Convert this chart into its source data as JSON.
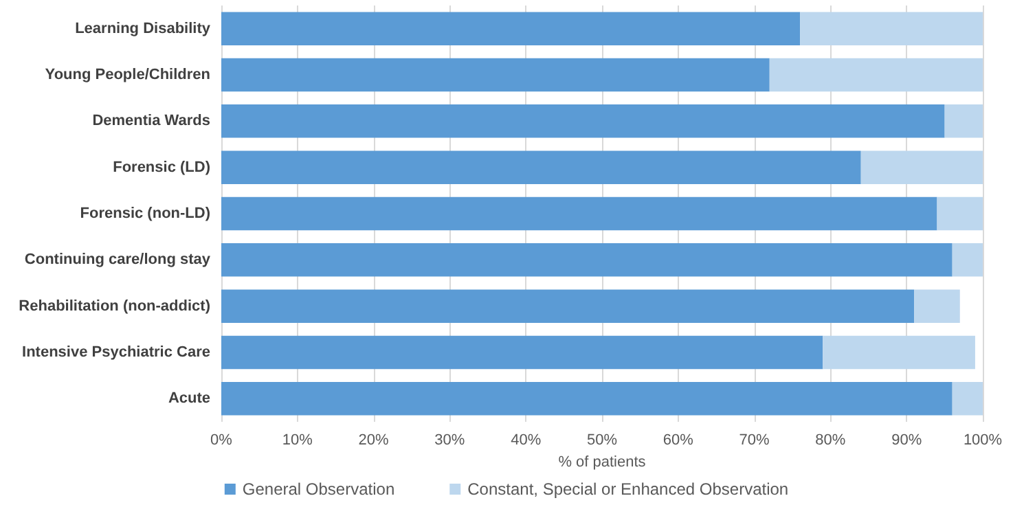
{
  "chart_data": {
    "type": "bar",
    "orientation": "horizontal",
    "stacked": true,
    "xlabel": "% of patients",
    "categories": [
      "Learning Disability",
      "Young People/Children",
      "Dementia Wards",
      "Forensic (LD)",
      "Forensic (non-LD)",
      "Continuing care/long stay",
      "Rehabilitation (non-addict)",
      "Intensive Psychiatric Care",
      "Acute"
    ],
    "series": [
      {
        "name": "General Observation",
        "color": "#5b9bd5",
        "values": [
          76,
          72,
          95,
          84,
          94,
          96,
          91,
          79,
          96
        ]
      },
      {
        "name": "Constant, Special or Enhanced Observation",
        "color": "#bdd7ee",
        "values": [
          24,
          28,
          5,
          16,
          6,
          4,
          6,
          20,
          4
        ]
      }
    ],
    "xlim": [
      0,
      100
    ],
    "xticks": [
      {
        "value": 0,
        "label": "0%"
      },
      {
        "value": 10,
        "label": "10%"
      },
      {
        "value": 20,
        "label": "20%"
      },
      {
        "value": 30,
        "label": "30%"
      },
      {
        "value": 40,
        "label": "40%"
      },
      {
        "value": 50,
        "label": "50%"
      },
      {
        "value": 60,
        "label": "60%"
      },
      {
        "value": 70,
        "label": "70%"
      },
      {
        "value": 80,
        "label": "80%"
      },
      {
        "value": 90,
        "label": "90%"
      },
      {
        "value": 100,
        "label": "100%"
      }
    ],
    "grid": "x",
    "legend": "bottom"
  }
}
